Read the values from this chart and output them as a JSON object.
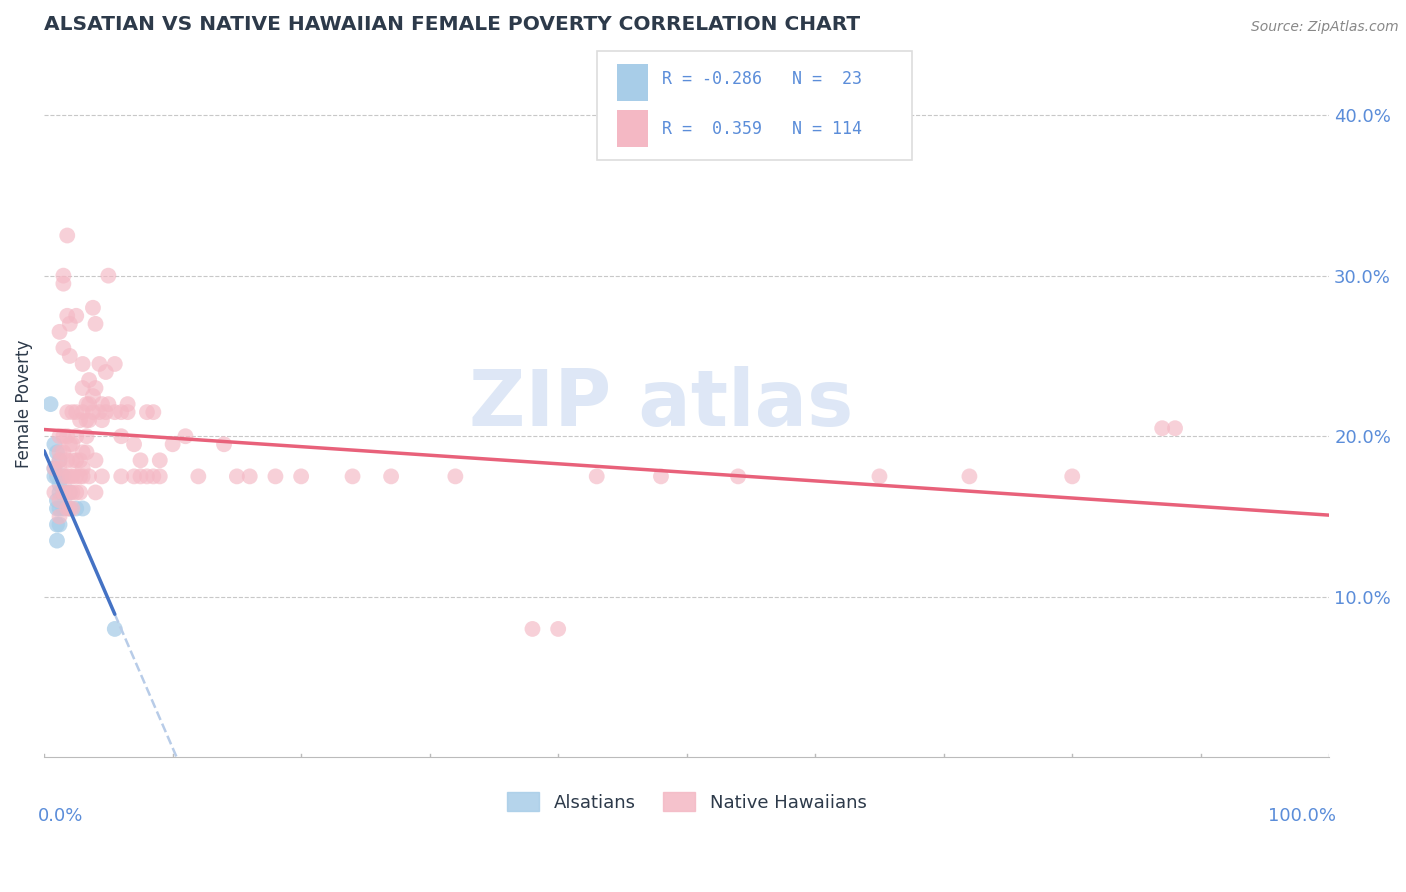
{
  "title": "ALSATIAN VS NATIVE HAWAIIAN FEMALE POVERTY CORRELATION CHART",
  "source": "Source: ZipAtlas.com",
  "ylabel": "Female Poverty",
  "ytick_labels": [
    "10.0%",
    "20.0%",
    "30.0%",
    "40.0%"
  ],
  "ytick_values": [
    0.1,
    0.2,
    0.3,
    0.4
  ],
  "xlim": [
    0.0,
    1.0
  ],
  "ylim": [
    0.0,
    0.44
  ],
  "alsatian_points": [
    [
      0.005,
      0.22
    ],
    [
      0.008,
      0.195
    ],
    [
      0.008,
      0.18
    ],
    [
      0.008,
      0.175
    ],
    [
      0.01,
      0.19
    ],
    [
      0.01,
      0.175
    ],
    [
      0.01,
      0.16
    ],
    [
      0.01,
      0.155
    ],
    [
      0.01,
      0.145
    ],
    [
      0.01,
      0.135
    ],
    [
      0.012,
      0.185
    ],
    [
      0.012,
      0.17
    ],
    [
      0.012,
      0.165
    ],
    [
      0.012,
      0.155
    ],
    [
      0.012,
      0.145
    ],
    [
      0.015,
      0.175
    ],
    [
      0.015,
      0.165
    ],
    [
      0.015,
      0.155
    ],
    [
      0.02,
      0.165
    ],
    [
      0.02,
      0.155
    ],
    [
      0.025,
      0.155
    ],
    [
      0.03,
      0.155
    ],
    [
      0.055,
      0.08
    ]
  ],
  "native_hawaiian_points": [
    [
      0.008,
      0.18
    ],
    [
      0.008,
      0.165
    ],
    [
      0.012,
      0.265
    ],
    [
      0.012,
      0.2
    ],
    [
      0.012,
      0.19
    ],
    [
      0.012,
      0.185
    ],
    [
      0.012,
      0.18
    ],
    [
      0.012,
      0.16
    ],
    [
      0.012,
      0.15
    ],
    [
      0.015,
      0.3
    ],
    [
      0.015,
      0.295
    ],
    [
      0.015,
      0.255
    ],
    [
      0.015,
      0.2
    ],
    [
      0.015,
      0.19
    ],
    [
      0.015,
      0.175
    ],
    [
      0.015,
      0.165
    ],
    [
      0.018,
      0.325
    ],
    [
      0.018,
      0.275
    ],
    [
      0.018,
      0.215
    ],
    [
      0.018,
      0.2
    ],
    [
      0.018,
      0.185
    ],
    [
      0.018,
      0.175
    ],
    [
      0.018,
      0.165
    ],
    [
      0.018,
      0.155
    ],
    [
      0.02,
      0.27
    ],
    [
      0.02,
      0.25
    ],
    [
      0.02,
      0.195
    ],
    [
      0.02,
      0.175
    ],
    [
      0.02,
      0.165
    ],
    [
      0.02,
      0.155
    ],
    [
      0.022,
      0.215
    ],
    [
      0.022,
      0.195
    ],
    [
      0.022,
      0.185
    ],
    [
      0.022,
      0.175
    ],
    [
      0.022,
      0.165
    ],
    [
      0.022,
      0.155
    ],
    [
      0.025,
      0.275
    ],
    [
      0.025,
      0.215
    ],
    [
      0.025,
      0.2
    ],
    [
      0.025,
      0.185
    ],
    [
      0.025,
      0.175
    ],
    [
      0.025,
      0.165
    ],
    [
      0.028,
      0.21
    ],
    [
      0.028,
      0.185
    ],
    [
      0.028,
      0.175
    ],
    [
      0.028,
      0.165
    ],
    [
      0.03,
      0.245
    ],
    [
      0.03,
      0.23
    ],
    [
      0.03,
      0.215
    ],
    [
      0.03,
      0.19
    ],
    [
      0.03,
      0.18
    ],
    [
      0.03,
      0.175
    ],
    [
      0.033,
      0.22
    ],
    [
      0.033,
      0.21
    ],
    [
      0.033,
      0.2
    ],
    [
      0.033,
      0.19
    ],
    [
      0.035,
      0.235
    ],
    [
      0.035,
      0.22
    ],
    [
      0.035,
      0.21
    ],
    [
      0.035,
      0.175
    ],
    [
      0.038,
      0.28
    ],
    [
      0.038,
      0.225
    ],
    [
      0.038,
      0.215
    ],
    [
      0.04,
      0.27
    ],
    [
      0.04,
      0.23
    ],
    [
      0.04,
      0.185
    ],
    [
      0.04,
      0.165
    ],
    [
      0.043,
      0.245
    ],
    [
      0.043,
      0.215
    ],
    [
      0.045,
      0.22
    ],
    [
      0.045,
      0.21
    ],
    [
      0.045,
      0.175
    ],
    [
      0.048,
      0.24
    ],
    [
      0.048,
      0.215
    ],
    [
      0.05,
      0.3
    ],
    [
      0.05,
      0.22
    ],
    [
      0.055,
      0.245
    ],
    [
      0.055,
      0.215
    ],
    [
      0.06,
      0.215
    ],
    [
      0.06,
      0.2
    ],
    [
      0.06,
      0.175
    ],
    [
      0.065,
      0.22
    ],
    [
      0.065,
      0.215
    ],
    [
      0.07,
      0.195
    ],
    [
      0.07,
      0.175
    ],
    [
      0.075,
      0.185
    ],
    [
      0.075,
      0.175
    ],
    [
      0.08,
      0.215
    ],
    [
      0.08,
      0.175
    ],
    [
      0.085,
      0.215
    ],
    [
      0.085,
      0.175
    ],
    [
      0.09,
      0.185
    ],
    [
      0.09,
      0.175
    ],
    [
      0.1,
      0.195
    ],
    [
      0.11,
      0.2
    ],
    [
      0.12,
      0.175
    ],
    [
      0.14,
      0.195
    ],
    [
      0.15,
      0.175
    ],
    [
      0.16,
      0.175
    ],
    [
      0.18,
      0.175
    ],
    [
      0.2,
      0.175
    ],
    [
      0.24,
      0.175
    ],
    [
      0.27,
      0.175
    ],
    [
      0.32,
      0.175
    ],
    [
      0.38,
      0.08
    ],
    [
      0.4,
      0.08
    ],
    [
      0.43,
      0.175
    ],
    [
      0.48,
      0.175
    ],
    [
      0.54,
      0.175
    ],
    [
      0.65,
      0.175
    ],
    [
      0.72,
      0.175
    ],
    [
      0.8,
      0.175
    ],
    [
      0.87,
      0.205
    ],
    [
      0.88,
      0.205
    ]
  ],
  "alsatian_color": "#a8cde8",
  "native_hawaiian_color": "#f4b8c4",
  "trend_alsatian_color": "#4472c4",
  "trend_native_hawaiian_color": "#e8617a",
  "trend_dashed_color": "#b8cce8",
  "background_color": "#ffffff",
  "grid_color": "#c8c8c8",
  "tick_color": "#5b8dd9",
  "title_color": "#2d3a4a",
  "source_color": "#888888",
  "watermark_color": "#c8d8f0",
  "legend_box_color": "#dddddd"
}
